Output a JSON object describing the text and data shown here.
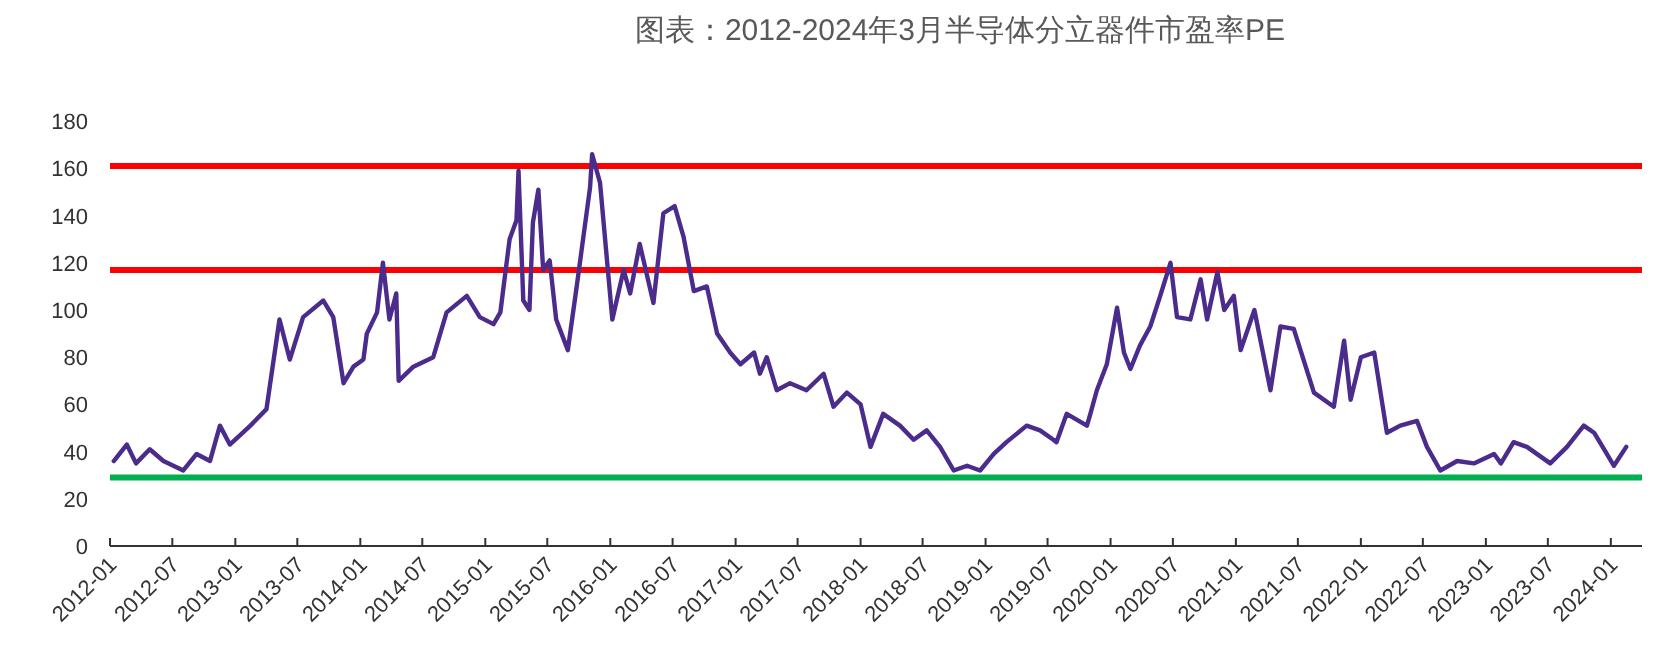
{
  "chart_data": {
    "type": "line",
    "title": "图表：2012-2024年3月半导体分立器件市盈率PE",
    "x": [
      "2012-01-12",
      "2012-02-19",
      "2012-03-17",
      "2012-04-26",
      "2012-06-05",
      "2012-08-02",
      "2012-09-10",
      "2012-10-19",
      "2012-11-17",
      "2012-12-16",
      "2013-02-14",
      "2013-04-02",
      "2013-05-10",
      "2013-06-09",
      "2013-07-18",
      "2013-09-15",
      "2013-10-14",
      "2013-11-13",
      "2013-12-12",
      "2014-01-10",
      "2014-01-20",
      "2014-02-19",
      "2014-03-08",
      "2014-03-27",
      "2014-04-16",
      "2014-04-23",
      "2014-06-05",
      "2014-08-02",
      "2014-09-10",
      "2014-11-08",
      "2014-12-16",
      "2015-01-25",
      "2015-02-14",
      "2015-03-13",
      "2015-04-02",
      "2015-04-08",
      "2015-04-22",
      "2015-05-10",
      "2015-05-20",
      "2015-06-05",
      "2015-06-19",
      "2015-07-08",
      "2015-07-27",
      "2015-08-30",
      "2015-09-25",
      "2015-11-03",
      "2015-11-09",
      "2015-12-02",
      "2016-01-07",
      "2016-02-09",
      "2016-02-28",
      "2016-03-27",
      "2016-05-06",
      "2016-06-04",
      "2016-07-07",
      "2016-08-02",
      "2016-09-01",
      "2016-10-09",
      "2016-11-08",
      "2016-12-16",
      "2017-01-15",
      "2017-02-24",
      "2017-03-13",
      "2017-04-02",
      "2017-05-01",
      "2017-06-09",
      "2017-07-27",
      "2017-09-15",
      "2017-10-14",
      "2017-11-22",
      "2018-01-01",
      "2018-01-30",
      "2018-03-08",
      "2018-04-26",
      "2018-06-05",
      "2018-07-13",
      "2018-08-21",
      "2018-09-30",
      "2018-11-08",
      "2018-12-16",
      "2019-01-25",
      "2019-03-03",
      "2019-05-01",
      "2019-06-09",
      "2019-07-18",
      "2019-07-27",
      "2019-08-26",
      "2019-10-24",
      "2019-11-03",
      "2019-11-22",
      "2019-12-21",
      "2020-01-20",
      "2020-02-09",
      "2020-02-28",
      "2020-03-27",
      "2020-04-26",
      "2020-05-25",
      "2020-06-24",
      "2020-07-13",
      "2020-08-21",
      "2020-09-20",
      "2020-10-09",
      "2020-11-08",
      "2020-11-28",
      "2020-12-26",
      "2021-01-15",
      "2021-02-24",
      "2021-04-12",
      "2021-05-11",
      "2021-06-19",
      "2021-08-17",
      "2021-10-14",
      "2021-11-13",
      "2021-12-02",
      "2022-01-01",
      "2022-02-09",
      "2022-03-18",
      "2022-04-26",
      "2022-06-14",
      "2022-07-13",
      "2022-08-21",
      "2022-10-09",
      "2022-11-27",
      "2023-01-25",
      "2023-02-14",
      "2023-03-23",
      "2023-05-01",
      "2023-07-08",
      "2023-08-26",
      "2023-10-14",
      "2023-11-13",
      "2023-12-12",
      "2024-01-10",
      "2024-02-15"
    ],
    "series": [
      {
        "color": "#4b2c8c",
        "values": [
          36,
          43,
          35,
          41,
          36,
          32,
          39,
          36,
          51,
          43,
          51,
          58,
          96,
          79,
          97,
          104,
          97,
          69,
          76,
          79,
          90,
          99,
          120,
          96,
          107,
          70,
          76,
          80,
          99,
          106,
          97,
          94,
          99,
          130,
          138,
          159,
          104,
          100,
          137,
          151,
          117,
          121,
          96,
          83,
          110,
          152,
          166,
          154,
          96,
          117,
          107,
          128,
          103,
          141,
          144,
          131,
          108,
          110,
          90,
          82,
          77,
          82,
          73,
          80,
          66,
          69,
          66,
          73,
          59,
          65,
          60,
          42,
          56,
          51,
          45,
          49,
          42,
          32,
          34,
          32,
          39,
          44,
          51,
          49,
          45,
          44,
          56,
          51,
          56,
          66,
          77,
          101,
          82,
          75,
          85,
          93,
          106,
          120,
          97,
          96,
          113,
          96,
          116,
          100,
          106,
          83,
          100,
          66,
          93,
          92,
          65,
          59,
          87,
          62,
          80,
          82,
          48,
          51,
          53,
          42,
          32,
          36,
          35,
          39,
          35,
          44,
          42,
          35,
          42,
          51,
          48,
          41,
          34,
          42
        ]
      }
    ],
    "xlim": [
      "2012-01-01",
      "2024-04-01"
    ],
    "xticks": [
      "2012-01",
      "2012-07",
      "2013-01",
      "2013-07",
      "2014-01",
      "2014-07",
      "2015-01",
      "2015-07",
      "2016-01",
      "2016-07",
      "2017-01",
      "2017-07",
      "2018-01",
      "2018-07",
      "2019-01",
      "2019-07",
      "2020-01",
      "2020-07",
      "2021-01",
      "2021-07",
      "2022-01",
      "2022-07",
      "2023-01",
      "2023-07",
      "2024-01"
    ],
    "ylim": [
      0,
      180
    ],
    "yticks": [
      0,
      20,
      40,
      60,
      80,
      100,
      120,
      140,
      160,
      180
    ],
    "ref_lines": [
      {
        "axis": "y",
        "value": 161,
        "color": "#ff0000"
      },
      {
        "axis": "y",
        "value": 117,
        "color": "#ff0000"
      },
      {
        "axis": "y",
        "value": 29,
        "color": "#00b050"
      }
    ]
  }
}
